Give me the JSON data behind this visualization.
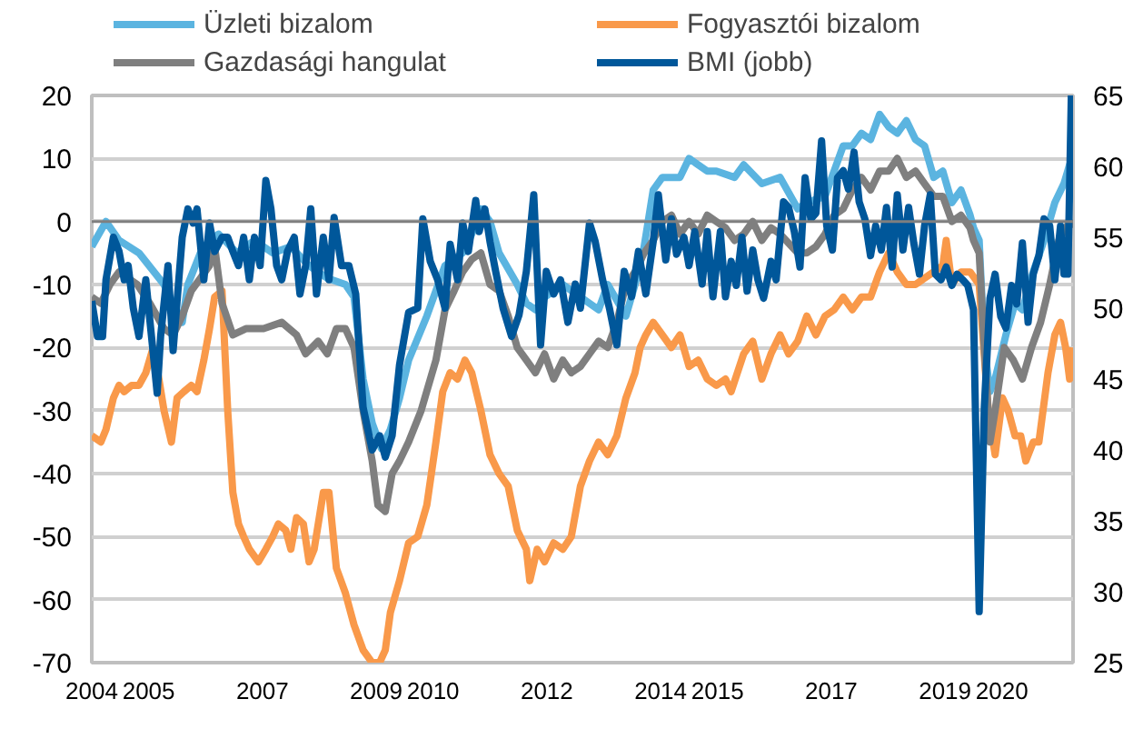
{
  "chart_data": {
    "type": "line",
    "xlim": [
      2004.0,
      2021.25
    ],
    "xticks": [
      2004,
      2005,
      2007,
      2009,
      2010,
      2012,
      2014,
      2015,
      2017,
      2019,
      2020
    ],
    "ylim": [
      -70,
      20
    ],
    "yticks": [
      -70,
      -60,
      -50,
      -40,
      -30,
      -20,
      -10,
      0,
      10,
      20
    ],
    "y2lim": [
      25,
      65
    ],
    "y2ticks": [
      25,
      30,
      35,
      40,
      45,
      50,
      55,
      60,
      65
    ],
    "grid": "y",
    "legend": "top",
    "marker": "none",
    "line_style": "solid",
    "ref_lines": [
      {
        "axis": "y",
        "value": 0,
        "color": "#7f7f7f"
      }
    ],
    "series": [
      {
        "name": "Üzleti bizalom",
        "color": "#5bb4e0",
        "x": [
          2004.0,
          2004.25,
          2004.48,
          2004.83,
          2005.27,
          2005.59,
          2005.69,
          2005.91,
          2006.07,
          2006.23,
          2006.55,
          2006.86,
          2007.18,
          2007.5,
          2007.82,
          2008.14,
          2008.46,
          2008.61,
          2008.77,
          2008.93,
          2009.09,
          2009.25,
          2009.41,
          2009.57,
          2009.89,
          2010.21,
          2010.52,
          2010.68,
          2010.84,
          2011.0,
          2011.16,
          2011.48,
          2011.64,
          2011.8,
          2011.96,
          2012.28,
          2012.59,
          2012.91,
          2013.07,
          2013.39,
          2013.55,
          2013.71,
          2013.87,
          2014.03,
          2014.34,
          2014.5,
          2014.82,
          2014.98,
          2015.3,
          2015.46,
          2015.78,
          2016.1,
          2016.41,
          2016.57,
          2016.89,
          2017.05,
          2017.21,
          2017.37,
          2017.53,
          2017.69,
          2017.85,
          2018.01,
          2018.16,
          2018.32,
          2018.48,
          2018.64,
          2018.8,
          2018.96,
          2019.12,
          2019.28,
          2019.44,
          2019.5,
          2019.6,
          2019.69,
          2019.79,
          2019.88,
          2020.07,
          2020.23,
          2020.36,
          2020.55,
          2020.74,
          2020.93,
          2021.09,
          2021.19,
          2021.25
        ],
        "values": [
          -4,
          0,
          -3,
          -5,
          -10,
          -16,
          -10,
          -5,
          -3,
          -2,
          -5,
          -3,
          -5,
          -4,
          -7,
          -9,
          -10,
          -12,
          -25,
          -32,
          -36,
          -33,
          -28,
          -22,
          -15,
          -7,
          -5,
          -2,
          2,
          0,
          -5,
          -10,
          -13,
          -14,
          -12,
          -10,
          -12,
          -14,
          -10,
          -15,
          -10,
          -4,
          5,
          7,
          7,
          10,
          8,
          8,
          7,
          9,
          6,
          7,
          2,
          3,
          4,
          8,
          12,
          12,
          14,
          13,
          17,
          15,
          14,
          16,
          13,
          12,
          7,
          8,
          3,
          5,
          1,
          -1,
          -3,
          -20,
          -27,
          -25,
          -18,
          -13,
          -14,
          -8,
          -3,
          3,
          6,
          9,
          3
        ]
      },
      {
        "name": "Fogyasztói bizalom",
        "color": "#f9994a",
        "x": [
          2004.0,
          2004.16,
          2004.25,
          2004.38,
          2004.48,
          2004.57,
          2004.7,
          2004.83,
          2004.95,
          2005.08,
          2005.18,
          2005.27,
          2005.4,
          2005.5,
          2005.62,
          2005.75,
          2005.85,
          2005.97,
          2006.07,
          2006.16,
          2006.29,
          2006.39,
          2006.48,
          2006.58,
          2006.67,
          2006.77,
          2006.93,
          2007.06,
          2007.18,
          2007.28,
          2007.41,
          2007.5,
          2007.6,
          2007.72,
          2007.82,
          2007.91,
          2008.07,
          2008.17,
          2008.3,
          2008.46,
          2008.61,
          2008.77,
          2008.93,
          2009.06,
          2009.16,
          2009.25,
          2009.41,
          2009.57,
          2009.73,
          2009.89,
          2010.05,
          2010.17,
          2010.3,
          2010.43,
          2010.56,
          2010.68,
          2010.84,
          2011.0,
          2011.16,
          2011.32,
          2011.48,
          2011.64,
          2011.7,
          2011.83,
          2011.96,
          2012.12,
          2012.28,
          2012.43,
          2012.59,
          2012.75,
          2012.91,
          2013.07,
          2013.23,
          2013.39,
          2013.55,
          2013.64,
          2013.74,
          2013.87,
          2014.03,
          2014.19,
          2014.34,
          2014.5,
          2014.66,
          2014.82,
          2014.98,
          2015.14,
          2015.24,
          2015.46,
          2015.62,
          2015.78,
          2015.94,
          2016.1,
          2016.25,
          2016.41,
          2016.57,
          2016.73,
          2016.89,
          2017.05,
          2017.21,
          2017.37,
          2017.53,
          2017.69,
          2017.85,
          2018.01,
          2018.16,
          2018.32,
          2018.48,
          2018.64,
          2018.8,
          2018.96,
          2019.02,
          2019.12,
          2019.28,
          2019.44,
          2019.6,
          2019.76,
          2019.88,
          2020.01,
          2020.11,
          2020.23,
          2020.33,
          2020.42,
          2020.55,
          2020.65,
          2020.81,
          2020.93,
          2021.03,
          2021.12,
          2021.19,
          2021.25
        ],
        "values": [
          -34,
          -35,
          -33,
          -28,
          -26,
          -27,
          -26,
          -26,
          -24,
          -20,
          -25,
          -30,
          -35,
          -28,
          -27,
          -26,
          -27,
          -22,
          -17,
          -12,
          -11,
          -30,
          -43,
          -48,
          -50,
          -52,
          -54,
          -52,
          -50,
          -48,
          -49,
          -52,
          -47,
          -48,
          -54,
          -52,
          -43,
          -43,
          -55,
          -59,
          -64,
          -68,
          -70,
          -70,
          -68,
          -62,
          -57,
          -51,
          -50,
          -45,
          -35,
          -27,
          -24,
          -25,
          -22,
          -24,
          -30,
          -37,
          -40,
          -42,
          -49,
          -52,
          -57,
          -52,
          -54,
          -51,
          -52,
          -50,
          -42,
          -38,
          -35,
          -37,
          -34,
          -28,
          -24,
          -20,
          -18,
          -16,
          -18,
          -20,
          -18,
          -23,
          -22,
          -25,
          -26,
          -25,
          -27,
          -21,
          -19,
          -25,
          -21,
          -18,
          -21,
          -19,
          -15,
          -18,
          -15,
          -14,
          -12,
          -14,
          -12,
          -12,
          -8,
          -5,
          -8,
          -10,
          -10,
          -9,
          -8,
          -7,
          -3,
          -10,
          -8,
          -8,
          -10,
          -30,
          -37,
          -28,
          -30,
          -34,
          -34,
          -38,
          -35,
          -35,
          -24,
          -18,
          -16,
          -20,
          -25,
          -20
        ]
      },
      {
        "name": "Gazdasági hangulat",
        "color": "#7f7f7f",
        "x": [
          2004.0,
          2004.16,
          2004.32,
          2004.48,
          2004.8,
          2005.02,
          2005.27,
          2005.43,
          2005.59,
          2005.75,
          2005.91,
          2006.07,
          2006.16,
          2006.29,
          2006.48,
          2006.71,
          2007.02,
          2007.34,
          2007.6,
          2007.76,
          2007.98,
          2008.14,
          2008.3,
          2008.46,
          2008.61,
          2008.77,
          2008.93,
          2009.03,
          2009.16,
          2009.28,
          2009.41,
          2009.57,
          2009.79,
          2010.05,
          2010.21,
          2010.37,
          2010.52,
          2010.68,
          2010.84,
          2011.0,
          2011.16,
          2011.32,
          2011.48,
          2011.64,
          2011.8,
          2011.96,
          2012.12,
          2012.28,
          2012.43,
          2012.59,
          2012.75,
          2012.91,
          2013.07,
          2013.23,
          2013.39,
          2013.55,
          2013.71,
          2013.87,
          2014.03,
          2014.19,
          2014.34,
          2014.5,
          2014.66,
          2014.82,
          2014.98,
          2015.14,
          2015.3,
          2015.46,
          2015.62,
          2015.78,
          2015.94,
          2016.1,
          2016.41,
          2016.57,
          2016.73,
          2016.89,
          2017.05,
          2017.21,
          2017.37,
          2017.53,
          2017.69,
          2017.85,
          2018.01,
          2018.16,
          2018.32,
          2018.48,
          2018.64,
          2018.8,
          2018.96,
          2019.12,
          2019.28,
          2019.44,
          2019.5,
          2019.6,
          2019.69,
          2019.79,
          2019.88,
          2020.04,
          2020.2,
          2020.36,
          2020.52,
          2020.68,
          2020.84,
          2021.0,
          2021.19,
          2021.25
        ],
        "values": [
          -12,
          -13,
          -10,
          -8,
          -10,
          -13,
          -17,
          -18,
          -15,
          -11,
          -9,
          -7,
          -4,
          -13,
          -18,
          -17,
          -17,
          -16,
          -18,
          -21,
          -19,
          -21,
          -17,
          -17,
          -20,
          -30,
          -38,
          -45,
          -46,
          -40,
          -38,
          -35,
          -30,
          -22,
          -14,
          -11,
          -8,
          -6,
          -5,
          -10,
          -11,
          -15,
          -20,
          -22,
          -24,
          -21,
          -25,
          -22,
          -24,
          -23,
          -21,
          -19,
          -20,
          -16,
          -10,
          -8,
          -5,
          -3,
          0,
          1,
          -2,
          0,
          -2,
          1,
          0,
          -1,
          -3,
          -2,
          0,
          -3,
          -1,
          -2,
          -5,
          -5,
          -4,
          -2,
          1,
          2,
          5,
          7,
          5,
          8,
          8,
          10,
          7,
          8,
          6,
          4,
          4,
          0,
          1,
          -1,
          -3,
          -5,
          -20,
          -35,
          -30,
          -20,
          -22,
          -25,
          -20,
          -16,
          -10,
          -3,
          0,
          -1
        ]
      },
      {
        "name": "BMI (jobb)",
        "color": "#00579a",
        "axis": "y2",
        "x": [
          2004.0,
          2004.1,
          2004.19,
          2004.25,
          2004.38,
          2004.48,
          2004.57,
          2004.64,
          2004.73,
          2004.83,
          2004.95,
          2005.05,
          2005.15,
          2005.21,
          2005.34,
          2005.43,
          2005.53,
          2005.59,
          2005.69,
          2005.78,
          2005.85,
          2005.97,
          2006.07,
          2006.16,
          2006.29,
          2006.39,
          2006.48,
          2006.58,
          2006.67,
          2006.77,
          2006.86,
          2006.96,
          2007.06,
          2007.15,
          2007.25,
          2007.34,
          2007.44,
          2007.56,
          2007.66,
          2007.76,
          2007.85,
          2007.95,
          2008.07,
          2008.17,
          2008.26,
          2008.39,
          2008.52,
          2008.64,
          2008.77,
          2008.93,
          2009.06,
          2009.16,
          2009.28,
          2009.41,
          2009.57,
          2009.73,
          2009.82,
          2009.95,
          2010.08,
          2010.21,
          2010.3,
          2010.43,
          2010.52,
          2010.62,
          2010.75,
          2010.81,
          2010.91,
          2011.0,
          2011.1,
          2011.23,
          2011.38,
          2011.51,
          2011.64,
          2011.77,
          2011.89,
          2011.99,
          2012.12,
          2012.24,
          2012.37,
          2012.5,
          2012.59,
          2012.75,
          2012.85,
          2012.98,
          2013.1,
          2013.23,
          2013.36,
          2013.49,
          2013.61,
          2013.74,
          2013.87,
          2013.96,
          2014.09,
          2014.19,
          2014.28,
          2014.41,
          2014.5,
          2014.6,
          2014.73,
          2014.82,
          2014.92,
          2015.05,
          2015.14,
          2015.24,
          2015.33,
          2015.43,
          2015.52,
          2015.62,
          2015.71,
          2015.81,
          2015.94,
          2016.03,
          2016.16,
          2016.25,
          2016.35,
          2016.45,
          2016.54,
          2016.64,
          2016.73,
          2016.83,
          2016.92,
          2017.02,
          2017.11,
          2017.21,
          2017.3,
          2017.4,
          2017.49,
          2017.59,
          2017.69,
          2017.78,
          2017.88,
          2017.97,
          2018.07,
          2018.16,
          2018.26,
          2018.36,
          2018.45,
          2018.55,
          2018.64,
          2018.74,
          2018.83,
          2018.93,
          2019.02,
          2019.12,
          2019.21,
          2019.31,
          2019.4,
          2019.5,
          2019.6,
          2019.69,
          2019.79,
          2019.88,
          2019.98,
          2020.07,
          2020.17,
          2020.26,
          2020.36,
          2020.46,
          2020.55,
          2020.65,
          2020.74,
          2020.84,
          2020.93,
          2021.03,
          2021.09,
          2021.16,
          2021.22
        ],
        "values": [
          50.5,
          48,
          48,
          52,
          55,
          54,
          52,
          53,
          50,
          48,
          52,
          48,
          44,
          48,
          53,
          47,
          52,
          55,
          57,
          56,
          57,
          52,
          56,
          54,
          55,
          55,
          54,
          53,
          55,
          52,
          55,
          53,
          59,
          57,
          53,
          52,
          54,
          55,
          51,
          53,
          57,
          51,
          55,
          52,
          56.4,
          53,
          53,
          51,
          43,
          40,
          41,
          39.5,
          41,
          46,
          49.7,
          50,
          56.3,
          53.3,
          52,
          50,
          54.5,
          52,
          56,
          54,
          57.6,
          55.4,
          57,
          54.7,
          52.6,
          50,
          48,
          49.5,
          52.6,
          58,
          47.4,
          52.6,
          51,
          52,
          49,
          51.7,
          50,
          56,
          54.7,
          52,
          50,
          47.4,
          52.6,
          50.8,
          54,
          51,
          54.7,
          58,
          53.4,
          56.3,
          53.8,
          55,
          53,
          55.4,
          51.7,
          55.4,
          50.8,
          55.4,
          50.8,
          53.3,
          51.6,
          55,
          51.2,
          54.1,
          52,
          50.7,
          53.3,
          52,
          57.5,
          57.1,
          55.4,
          52.9,
          59.2,
          56.3,
          56.7,
          61.8,
          55.8,
          54.1,
          59.2,
          59.7,
          58.4,
          61,
          57.5,
          56.3,
          53.7,
          55.8,
          54.1,
          57.1,
          52.9,
          58,
          54.1,
          57.1,
          54.6,
          52.4,
          55.8,
          58,
          52.4,
          52,
          52.9,
          51.6,
          52.4,
          52,
          51.6,
          49.9,
          28.6,
          43,
          50.7,
          52.4,
          49.4,
          48.6,
          51.6,
          50.3,
          54.6,
          49,
          52.4,
          53.7,
          56.3,
          55.8,
          52,
          55.8,
          52.4,
          52.4,
          65
        ]
      }
    ]
  }
}
